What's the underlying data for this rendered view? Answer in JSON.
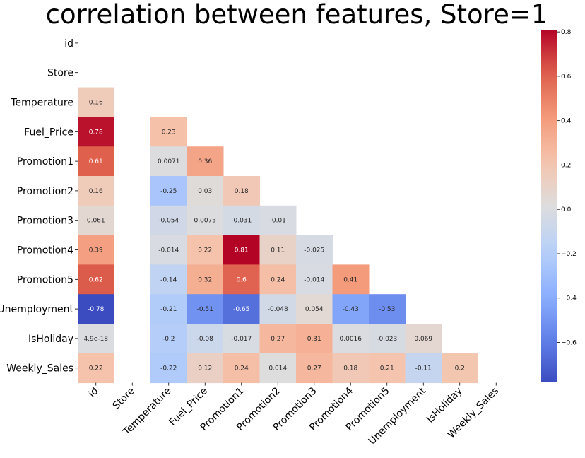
{
  "chart_data": {
    "type": "heatmap",
    "title": "correlation between features, Store=1",
    "labels": [
      "id",
      "Store",
      "Temperature",
      "Fuel_Price",
      "Promotion1",
      "Promotion2",
      "Promotion3",
      "Promotion4",
      "Promotion5",
      "Unemployment",
      "IsHoliday",
      "Weekly_Sales"
    ],
    "cells": [
      {
        "row": 2,
        "col": 0,
        "label": "0.16",
        "value": 0.16
      },
      {
        "row": 3,
        "col": 0,
        "label": "0.78",
        "value": 0.78
      },
      {
        "row": 3,
        "col": 2,
        "label": "0.23",
        "value": 0.23
      },
      {
        "row": 4,
        "col": 0,
        "label": "0.61",
        "value": 0.61
      },
      {
        "row": 4,
        "col": 2,
        "label": "0.0071",
        "value": 0.0071
      },
      {
        "row": 4,
        "col": 3,
        "label": "0.36",
        "value": 0.36
      },
      {
        "row": 5,
        "col": 0,
        "label": "0.16",
        "value": 0.16
      },
      {
        "row": 5,
        "col": 2,
        "label": "-0.25",
        "value": -0.25
      },
      {
        "row": 5,
        "col": 3,
        "label": "0.03",
        "value": 0.03
      },
      {
        "row": 5,
        "col": 4,
        "label": "0.18",
        "value": 0.18
      },
      {
        "row": 6,
        "col": 0,
        "label": "0.061",
        "value": 0.061
      },
      {
        "row": 6,
        "col": 2,
        "label": "-0.054",
        "value": -0.054
      },
      {
        "row": 6,
        "col": 3,
        "label": "0.0073",
        "value": 0.0073
      },
      {
        "row": 6,
        "col": 4,
        "label": "-0.031",
        "value": -0.031
      },
      {
        "row": 6,
        "col": 5,
        "label": "-0.01",
        "value": -0.01
      },
      {
        "row": 7,
        "col": 0,
        "label": "0.39",
        "value": 0.39
      },
      {
        "row": 7,
        "col": 2,
        "label": "-0.014",
        "value": -0.014
      },
      {
        "row": 7,
        "col": 3,
        "label": "0.22",
        "value": 0.22
      },
      {
        "row": 7,
        "col": 4,
        "label": "0.81",
        "value": 0.81
      },
      {
        "row": 7,
        "col": 5,
        "label": "0.11",
        "value": 0.11
      },
      {
        "row": 7,
        "col": 6,
        "label": "-0.025",
        "value": -0.025
      },
      {
        "row": 8,
        "col": 0,
        "label": "0.62",
        "value": 0.62
      },
      {
        "row": 8,
        "col": 2,
        "label": "-0.14",
        "value": -0.14
      },
      {
        "row": 8,
        "col": 3,
        "label": "0.32",
        "value": 0.32
      },
      {
        "row": 8,
        "col": 4,
        "label": "0.6",
        "value": 0.6
      },
      {
        "row": 8,
        "col": 5,
        "label": "0.24",
        "value": 0.24
      },
      {
        "row": 8,
        "col": 6,
        "label": "-0.014",
        "value": -0.014
      },
      {
        "row": 8,
        "col": 7,
        "label": "0.41",
        "value": 0.41
      },
      {
        "row": 9,
        "col": 0,
        "label": "-0.78",
        "value": -0.78
      },
      {
        "row": 9,
        "col": 2,
        "label": "-0.21",
        "value": -0.21
      },
      {
        "row": 9,
        "col": 3,
        "label": "-0.51",
        "value": -0.51
      },
      {
        "row": 9,
        "col": 4,
        "label": "-0.65",
        "value": -0.65
      },
      {
        "row": 9,
        "col": 5,
        "label": "-0.048",
        "value": -0.048
      },
      {
        "row": 9,
        "col": 6,
        "label": "0.054",
        "value": 0.054
      },
      {
        "row": 9,
        "col": 7,
        "label": "-0.43",
        "value": -0.43
      },
      {
        "row": 9,
        "col": 8,
        "label": "-0.53",
        "value": -0.53
      },
      {
        "row": 10,
        "col": 0,
        "label": "4.9e-18",
        "value": 4.9e-18
      },
      {
        "row": 10,
        "col": 2,
        "label": "-0.2",
        "value": -0.2
      },
      {
        "row": 10,
        "col": 3,
        "label": "-0.08",
        "value": -0.08
      },
      {
        "row": 10,
        "col": 4,
        "label": "-0.017",
        "value": -0.017
      },
      {
        "row": 10,
        "col": 5,
        "label": "0.27",
        "value": 0.27
      },
      {
        "row": 10,
        "col": 6,
        "label": "0.31",
        "value": 0.31
      },
      {
        "row": 10,
        "col": 7,
        "label": "0.0016",
        "value": 0.0016
      },
      {
        "row": 10,
        "col": 8,
        "label": "-0.023",
        "value": -0.023
      },
      {
        "row": 10,
        "col": 9,
        "label": "0.069",
        "value": 0.069
      },
      {
        "row": 11,
        "col": 0,
        "label": "0.22",
        "value": 0.22
      },
      {
        "row": 11,
        "col": 2,
        "label": "-0.22",
        "value": -0.22
      },
      {
        "row": 11,
        "col": 3,
        "label": "0.12",
        "value": 0.12
      },
      {
        "row": 11,
        "col": 4,
        "label": "0.24",
        "value": 0.24
      },
      {
        "row": 11,
        "col": 5,
        "label": "0.014",
        "value": 0.014
      },
      {
        "row": 11,
        "col": 6,
        "label": "0.27",
        "value": 0.27
      },
      {
        "row": 11,
        "col": 7,
        "label": "0.18",
        "value": 0.18
      },
      {
        "row": 11,
        "col": 8,
        "label": "0.21",
        "value": 0.21
      },
      {
        "row": 11,
        "col": 9,
        "label": "-0.11",
        "value": -0.11
      },
      {
        "row": 11,
        "col": 10,
        "label": "0.2",
        "value": 0.2
      }
    ],
    "colorbar": {
      "colormap": "coolwarm",
      "vmin": -0.78,
      "vmax": 0.81,
      "ticks": [
        "0.8",
        "0.6",
        "0.4",
        "0.2",
        "0.0",
        "−0.2",
        "−0.4",
        "−0.6"
      ],
      "tick_values": [
        0.8,
        0.6,
        0.4,
        0.2,
        0.0,
        -0.2,
        -0.4,
        -0.6
      ]
    },
    "grid": false,
    "legend": "colorbar-right",
    "mask": "upper-triangle"
  }
}
